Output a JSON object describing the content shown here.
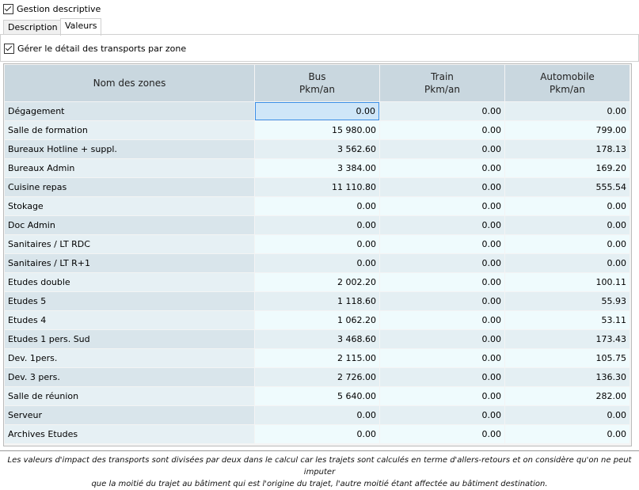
{
  "header": {
    "checkbox": "Gestion descriptive"
  },
  "tabs": [
    "Description",
    "Valeurs"
  ],
  "panel": {
    "checkbox": "Gérer le détail des transports par zone"
  },
  "table": {
    "columns": [
      [
        "Nom des zones"
      ],
      [
        "Bus",
        "Pkm/an"
      ],
      [
        "Train",
        "Pkm/an"
      ],
      [
        "Automobile",
        "Pkm/an"
      ]
    ],
    "rows": [
      [
        "Dégagement",
        "0.00",
        "0.00",
        "0.00"
      ],
      [
        "Salle de formation",
        "15 980.00",
        "0.00",
        "799.00"
      ],
      [
        "Bureaux Hotline + suppl.",
        "3 562.60",
        "0.00",
        "178.13"
      ],
      [
        "Bureaux Admin",
        "3 384.00",
        "0.00",
        "169.20"
      ],
      [
        "Cuisine repas",
        "11 110.80",
        "0.00",
        "555.54"
      ],
      [
        "Stokage",
        "0.00",
        "0.00",
        "0.00"
      ],
      [
        "Doc Admin",
        "0.00",
        "0.00",
        "0.00"
      ],
      [
        "Sanitaires / LT RDC",
        "0.00",
        "0.00",
        "0.00"
      ],
      [
        "Sanitaires / LT R+1",
        "0.00",
        "0.00",
        "0.00"
      ],
      [
        "Etudes double",
        "2 002.20",
        "0.00",
        "100.11"
      ],
      [
        "Etudes 5",
        "1 118.60",
        "0.00",
        "55.93"
      ],
      [
        "Etudes 4",
        "1 062.20",
        "0.00",
        "53.11"
      ],
      [
        "Etudes 1 pers. Sud",
        "3 468.60",
        "0.00",
        "173.43"
      ],
      [
        "Dev. 1pers.",
        "2 115.00",
        "0.00",
        "105.75"
      ],
      [
        "Dev. 3 pers.",
        "2 726.00",
        "0.00",
        "136.30"
      ],
      [
        "Salle de réunion",
        "5 640.00",
        "0.00",
        "282.00"
      ],
      [
        "Serveur",
        "0.00",
        "0.00",
        "0.00"
      ],
      [
        "Archives Etudes",
        "0.00",
        "0.00",
        "0.00"
      ]
    ]
  },
  "footnote": [
    "Les valeurs d'impact des transports sont divisées par deux dans le calcul car les trajets sont calculés en terme d'allers-retours et on considère qu'on ne peut imputer",
    "que la moitié du trajet au bâtiment qui est l'origine du trajet, l'autre moitié étant affectée au bâtiment destination."
  ]
}
